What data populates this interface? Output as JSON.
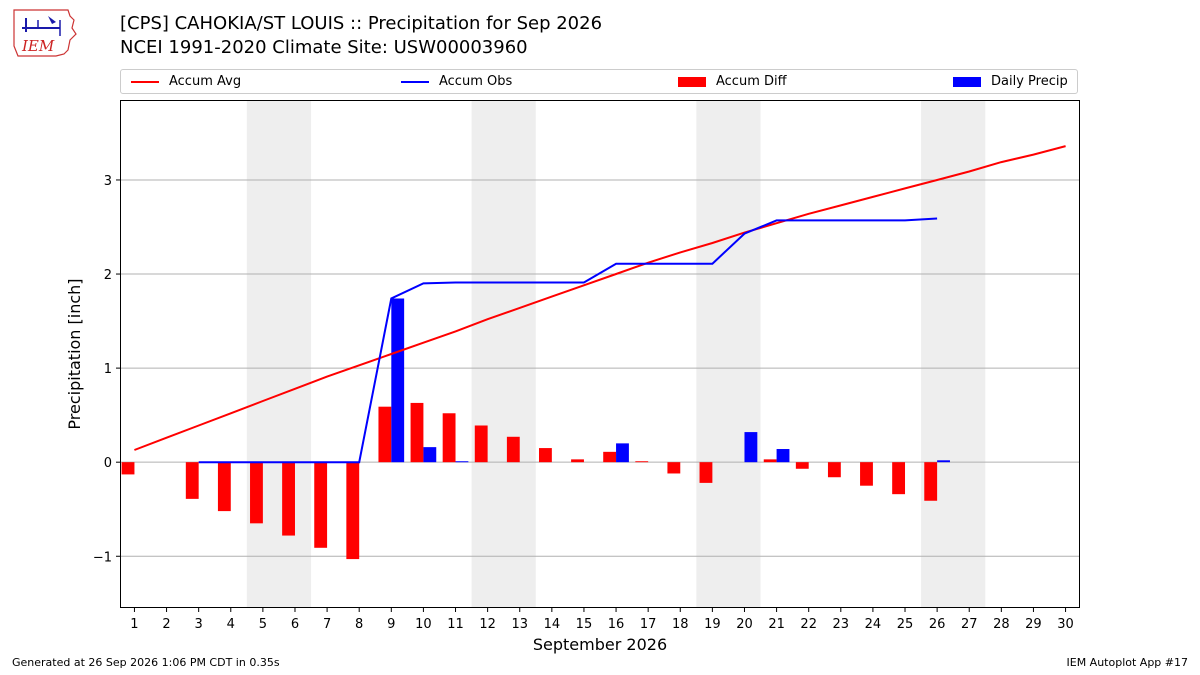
{
  "header": {
    "title": "[CPS] CAHOKIA/ST LOUIS :: Precipitation for Sep 2026",
    "subtitle": "NCEI 1991-2020 Climate Site: USW00003960"
  },
  "logo": {
    "text": "IEM",
    "icon": "iem-iowa-logo-icon"
  },
  "legend": [
    {
      "label": "Accum Avg",
      "kind": "line",
      "color": "#ff0000"
    },
    {
      "label": "Accum Obs",
      "kind": "line",
      "color": "#0000ff"
    },
    {
      "label": "Accum Diff",
      "kind": "patch",
      "color": "#ff0000"
    },
    {
      "label": "Daily Precip",
      "kind": "patch",
      "color": "#0000ff"
    }
  ],
  "chart_data": {
    "type": "bar",
    "xlabel": "September 2026",
    "ylabel": "Precipitation [inch]",
    "ylim": [
      -1.55,
      3.85
    ],
    "yticks": [
      -1,
      0,
      1,
      2,
      3
    ],
    "ytick_labels": [
      "−1",
      "0",
      "1",
      "2",
      "3"
    ],
    "x": [
      1,
      2,
      3,
      4,
      5,
      6,
      7,
      8,
      9,
      10,
      11,
      12,
      13,
      14,
      15,
      16,
      17,
      18,
      19,
      20,
      21,
      22,
      23,
      24,
      25,
      26,
      27,
      28,
      29,
      30
    ],
    "weekend_shading": [
      [
        5,
        6
      ],
      [
        12,
        13
      ],
      [
        19,
        20
      ],
      [
        26,
        27
      ]
    ],
    "accum_avg": [
      0.13,
      0.26,
      0.39,
      0.52,
      0.65,
      0.78,
      0.91,
      1.03,
      1.15,
      1.27,
      1.39,
      1.52,
      1.64,
      1.76,
      1.88,
      2.0,
      2.12,
      2.23,
      2.33,
      2.44,
      2.54,
      2.64,
      2.73,
      2.82,
      2.91,
      3.0,
      3.09,
      3.19,
      3.27,
      3.36
    ],
    "accum_obs": [
      null,
      null,
      0.0,
      0.0,
      0.0,
      0.0,
      0.0,
      0.0,
      1.74,
      1.9,
      1.91,
      1.91,
      1.91,
      1.91,
      1.91,
      2.11,
      2.11,
      2.11,
      2.11,
      2.43,
      2.57,
      2.57,
      2.57,
      2.57,
      2.57,
      2.59,
      null,
      null,
      null,
      null
    ],
    "accum_diff": [
      -0.13,
      null,
      -0.39,
      -0.52,
      -0.65,
      -0.78,
      -0.91,
      -1.03,
      0.59,
      0.63,
      0.52,
      0.39,
      0.27,
      0.15,
      0.03,
      0.11,
      0.01,
      -0.12,
      -0.22,
      null,
      0.03,
      -0.07,
      -0.16,
      -0.25,
      -0.34,
      -0.41,
      null,
      null,
      null,
      null
    ],
    "daily_precip": [
      null,
      null,
      0.0,
      0.0,
      0.0,
      0.0,
      0.0,
      0.0,
      1.74,
      0.16,
      0.01,
      0.0,
      0.0,
      0.0,
      0.0,
      0.2,
      0.0,
      0.0,
      0.0,
      0.32,
      0.14,
      0.0,
      0.0,
      0.0,
      0.0,
      0.02,
      null,
      null,
      null,
      null
    ],
    "colors": {
      "avg": "#ff0000",
      "obs": "#0000ff",
      "diff": "#ff0000",
      "daily": "#0000ff",
      "grid": "#b0b0b0",
      "weekend": "#eeeeee"
    },
    "grid": true,
    "legend_position": "top"
  },
  "footer": {
    "generated": "Generated at 26 Sep 2026 1:06 PM CDT in 0.35s",
    "app": "IEM Autoplot App #17"
  }
}
